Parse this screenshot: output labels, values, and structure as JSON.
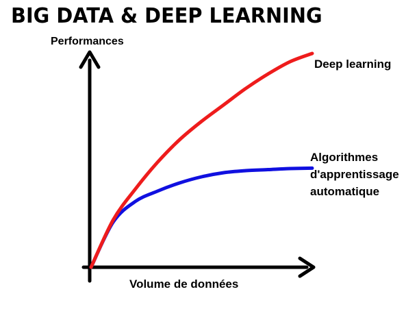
{
  "chart_data": {
    "type": "line",
    "title": "BIG DATA & DEEP LEARNING",
    "xlabel": "Volume de données",
    "ylabel": "Performances",
    "x": [
      0,
      10,
      20,
      30,
      40,
      50,
      60,
      70,
      80,
      90,
      100
    ],
    "xlim": [
      0,
      100
    ],
    "ylim": [
      0,
      100
    ],
    "grid": false,
    "legend": "none (direct labels)",
    "series": [
      {
        "name": "Deep learning",
        "color": "#ee1c1c",
        "values": [
          0,
          23,
          38,
          51,
          62,
          71,
          79,
          87,
          94,
          100,
          104
        ]
      },
      {
        "name_lines": [
          "Algorithmes",
          "d'apprentissage",
          "automatique"
        ],
        "color": "#1010e0",
        "values": [
          0,
          22,
          32,
          37,
          41,
          44,
          46,
          47,
          47.5,
          48,
          48.2
        ]
      }
    ]
  }
}
